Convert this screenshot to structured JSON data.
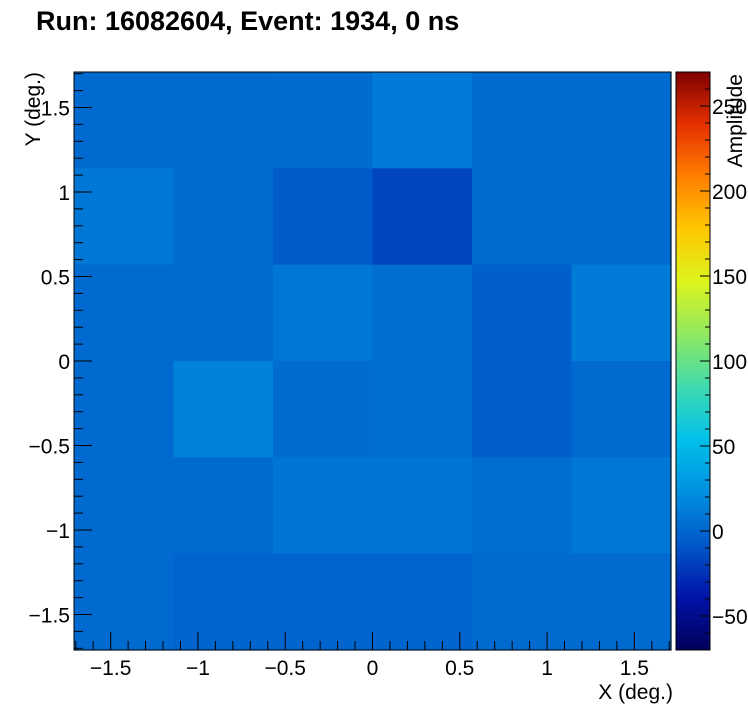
{
  "chart_data": {
    "type": "heatmap",
    "title": "Run: 16082604, Event: 1934, 0 ns",
    "xlabel": "X (deg.)",
    "ylabel": "Y (deg.)",
    "zlabel": "Amplitude",
    "xlim": [
      -1.71,
      1.71
    ],
    "ylim": [
      -1.71,
      1.71
    ],
    "zlim": [
      -70,
      270
    ],
    "x_edges": [
      -1.71,
      -1.14,
      -0.57,
      0.0,
      0.57,
      1.14,
      1.71
    ],
    "y_edges": [
      -1.71,
      -1.14,
      -0.57,
      0.0,
      0.57,
      1.14,
      1.71
    ],
    "x_ticks": [
      -1.5,
      -1,
      -0.5,
      0,
      0.5,
      1,
      1.5
    ],
    "x_tick_labels": [
      "−1.5",
      "−1",
      "−0.5",
      "0",
      "0.5",
      "1",
      "1.5"
    ],
    "y_ticks": [
      -1.5,
      -1,
      -0.5,
      0,
      0.5,
      1,
      1.5
    ],
    "y_tick_labels": [
      "−1.5",
      "−1",
      "−0.5",
      "0",
      "0.5",
      "1",
      "1.5"
    ],
    "z_ticks": [
      -50,
      0,
      50,
      100,
      150,
      200,
      250
    ],
    "z_tick_labels": [
      "−50",
      "0",
      "50",
      "100",
      "150",
      "200",
      "250"
    ],
    "values_rows_top_to_bottom": [
      [
        2,
        2,
        3,
        12,
        3,
        3
      ],
      [
        9,
        3,
        -6,
        -17,
        2,
        2
      ],
      [
        2,
        2,
        9,
        4,
        -4,
        12
      ],
      [
        2,
        15,
        3,
        4,
        -4,
        2
      ],
      [
        2,
        2,
        8,
        8,
        4,
        9
      ],
      [
        2,
        -1,
        -1,
        -1,
        2,
        2
      ]
    ],
    "colorscale": [
      "#00005b",
      "#0013a8",
      "#0057c8",
      "#0090e0",
      "#00c0ea",
      "#3fdbb0",
      "#8fe860",
      "#dcf41e",
      "#ffc800",
      "#ff7f00",
      "#e63000",
      "#7d0000"
    ],
    "grid": false,
    "legend": "colorbar-right"
  }
}
